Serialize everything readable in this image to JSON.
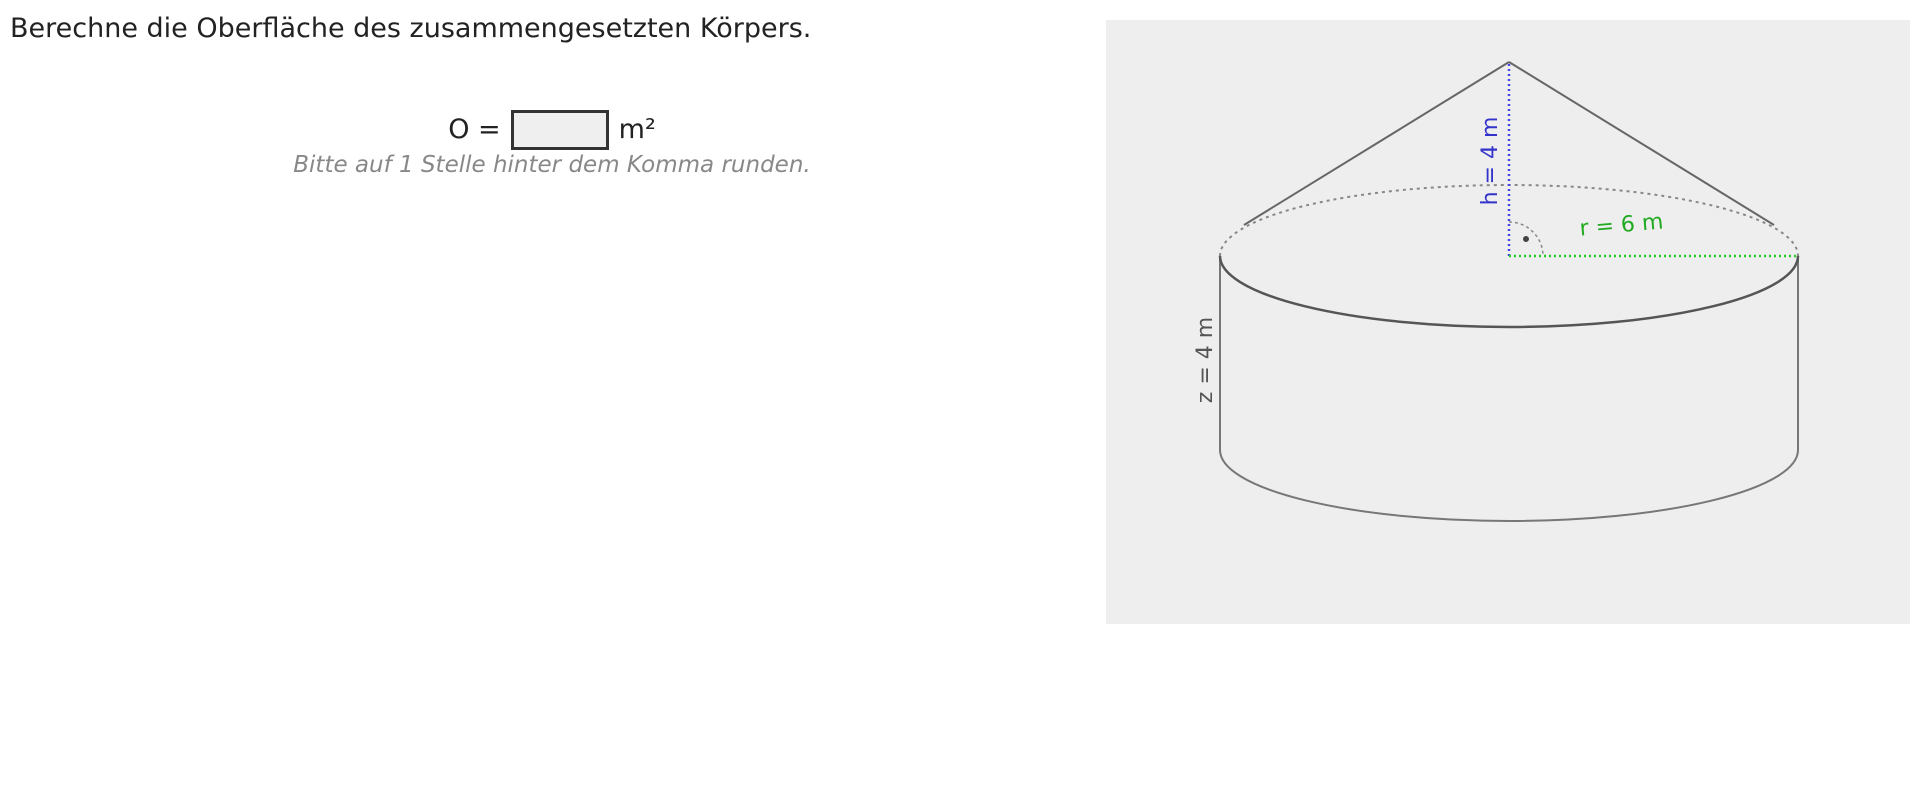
{
  "task": {
    "text": "Berechne die Oberfläche des zusammengesetzten Körpers."
  },
  "answer": {
    "formula_label": "O =",
    "value": "",
    "unit": "m²"
  },
  "hint": "Bitte auf 1 Stelle hinter dem Komma runden.",
  "figure": {
    "labels": {
      "cone_height": "h = 4  m",
      "radius": "r = 6  m",
      "cylinder_height": "z = 4  m"
    },
    "colors": {
      "background": "#eeeeee",
      "outline": "#666666",
      "hidden_edge": "#888888",
      "height_line": "#4444ee",
      "radius_line": "#22cc22",
      "radius_label": "#22aa22",
      "cylinder_label": "#555555"
    }
  }
}
